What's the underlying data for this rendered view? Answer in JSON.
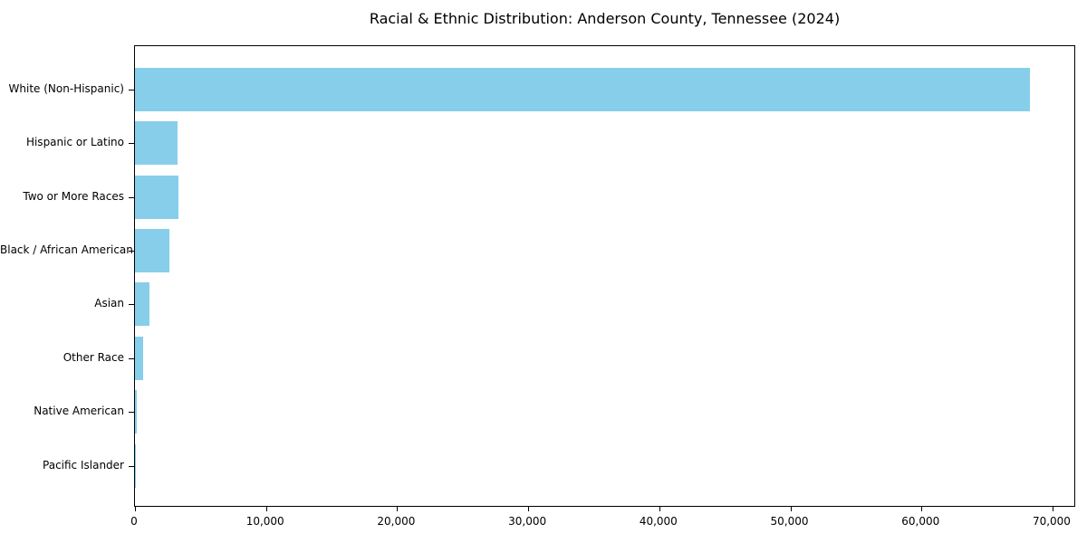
{
  "chart_data": {
    "type": "bar",
    "orientation": "horizontal",
    "title": "Racial & Ethnic Distribution: Anderson County, Tennessee (2024)",
    "xlabel": "",
    "ylabel": "",
    "categories": [
      "White (Non-Hispanic)",
      "Hispanic or Latino",
      "Two or More Races",
      "Black / African American",
      "Asian",
      "Other Race",
      "Native American",
      "Pacific Islander"
    ],
    "values": [
      68300,
      3280,
      3330,
      2660,
      1140,
      640,
      150,
      30
    ],
    "xlim": [
      0,
      71800
    ],
    "x_ticks": [
      {
        "value": 0,
        "label": "0"
      },
      {
        "value": 10000,
        "label": "10,000"
      },
      {
        "value": 20000,
        "label": "20,000"
      },
      {
        "value": 30000,
        "label": "30,000"
      },
      {
        "value": 40000,
        "label": "40,000"
      },
      {
        "value": 50000,
        "label": "50,000"
      },
      {
        "value": 60000,
        "label": "60,000"
      },
      {
        "value": 70000,
        "label": "70,000"
      }
    ],
    "bar_color": "#87CEEB",
    "spine_color": "#000000",
    "text_color": "#000000",
    "background_color": "#FFFFFF",
    "grid": false,
    "legend": "none"
  }
}
